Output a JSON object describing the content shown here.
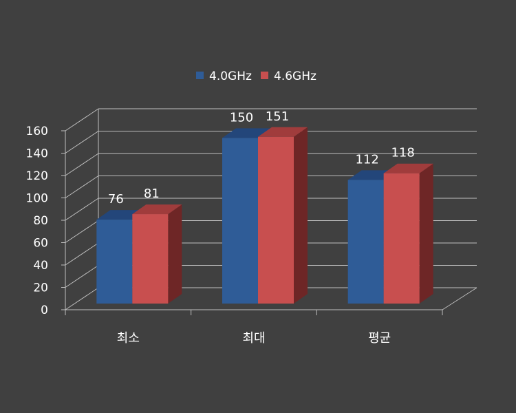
{
  "chart_data": {
    "type": "bar",
    "title": "",
    "xlabel": "",
    "ylabel": "",
    "categories": [
      "최소",
      "최대",
      "평균"
    ],
    "series": [
      {
        "name": "4.0GHz",
        "values": [
          76,
          150,
          112
        ],
        "color": "#2f5c97",
        "top_color": "#23467a",
        "side_color": "#1d3a63"
      },
      {
        "name": "4.6GHz",
        "values": [
          81,
          151,
          118
        ],
        "color": "#c84f4f",
        "top_color": "#a03c3c",
        "side_color": "#6e2626"
      }
    ],
    "ylim": [
      0,
      160
    ],
    "yticks": [
      "0",
      "20",
      "40",
      "60",
      "80",
      "100",
      "120",
      "140",
      "160"
    ],
    "grid": true,
    "legend_position": "top",
    "data_labels": true,
    "background_color": "#404040",
    "grid_color": "#bfbfbf"
  }
}
